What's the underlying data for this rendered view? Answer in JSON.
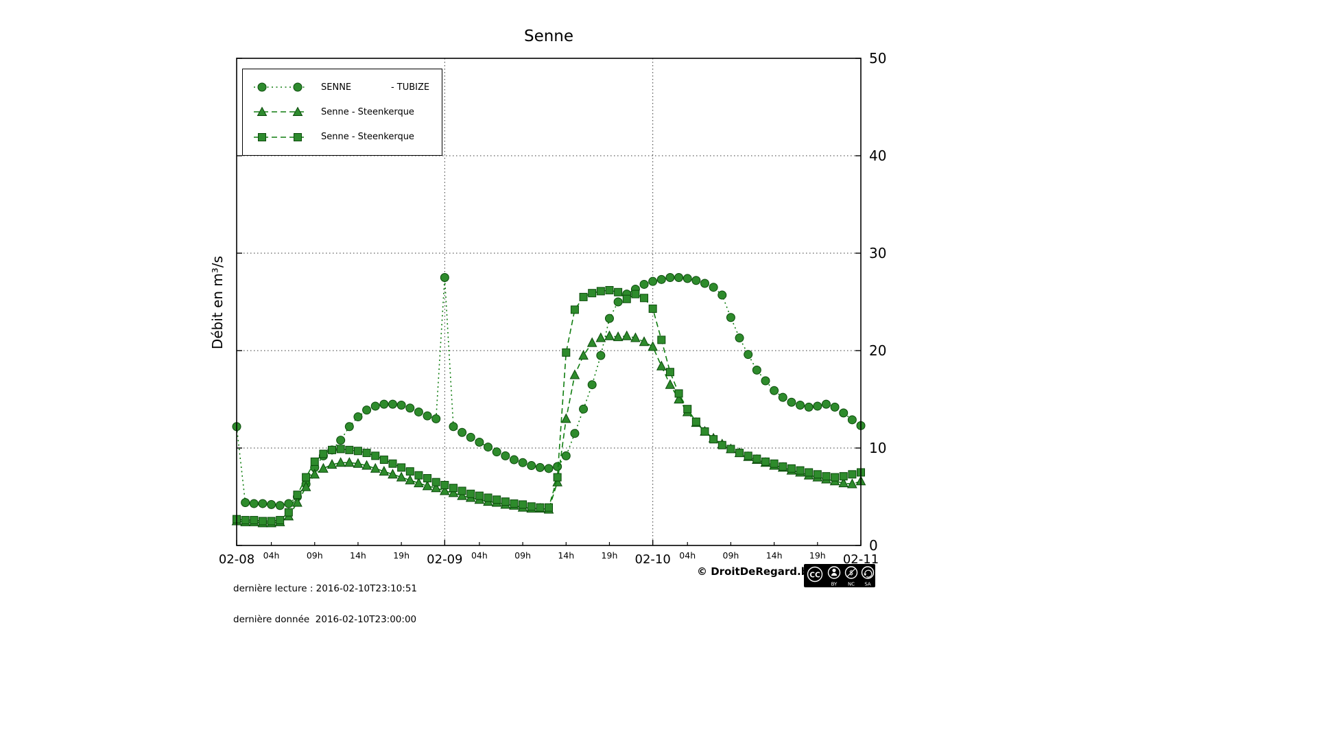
{
  "chart_data": {
    "type": "line",
    "title": "Senne",
    "ylabel": "Débit en m³/s",
    "x_axis": {
      "unit": "hours from 2016-02-08T00:00",
      "step_hours": 1,
      "range": [
        0,
        72
      ],
      "major_ticks": [
        {
          "pos": 0,
          "label": "02-08"
        },
        {
          "pos": 24,
          "label": "02-09"
        },
        {
          "pos": 48,
          "label": "02-10"
        },
        {
          "pos": 72,
          "label": "02-11"
        }
      ],
      "minor_ticks": [
        {
          "pos": 4,
          "label": "04h"
        },
        {
          "pos": 9,
          "label": "09h"
        },
        {
          "pos": 14,
          "label": "14h"
        },
        {
          "pos": 19,
          "label": "19h"
        },
        {
          "pos": 28,
          "label": "04h"
        },
        {
          "pos": 33,
          "label": "09h"
        },
        {
          "pos": 38,
          "label": "14h"
        },
        {
          "pos": 43,
          "label": "19h"
        },
        {
          "pos": 52,
          "label": "04h"
        },
        {
          "pos": 57,
          "label": "09h"
        },
        {
          "pos": 62,
          "label": "14h"
        },
        {
          "pos": 67,
          "label": "19h"
        }
      ]
    },
    "y_axis": {
      "range": [
        0,
        50
      ],
      "ticks": [
        0,
        10,
        20,
        30,
        40,
        50
      ],
      "side": "right"
    },
    "grid": {
      "h_lines": [
        10,
        20,
        30,
        40
      ],
      "v_lines": [
        24,
        48
      ],
      "style": "dotted"
    },
    "series": [
      {
        "name": "SENNE              - TUBIZE",
        "station": "Tubize",
        "marker": "circle",
        "line_style": "dotted",
        "color": "#0e7c0e",
        "values": [
          12.2,
          4.4,
          4.3,
          4.3,
          4.2,
          4.1,
          4.3,
          5.0,
          6.3,
          8.0,
          9.2,
          9.8,
          10.8,
          12.2,
          13.2,
          13.9,
          14.3,
          14.5,
          14.5,
          14.4,
          14.1,
          13.7,
          13.3,
          13.0,
          27.5,
          12.2,
          11.6,
          11.1,
          10.6,
          10.1,
          9.6,
          9.2,
          8.8,
          8.5,
          8.2,
          8.0,
          7.9,
          8.1,
          9.2,
          11.5,
          14.0,
          16.5,
          19.5,
          23.3,
          25.0,
          25.8,
          26.3,
          26.8,
          27.1,
          27.3,
          27.5,
          27.5,
          27.4,
          27.2,
          26.9,
          26.5,
          25.7,
          23.4,
          21.3,
          19.6,
          18.0,
          16.9,
          15.9,
          15.2,
          14.7,
          14.4,
          14.2,
          14.3,
          14.5,
          14.2,
          13.6,
          12.9,
          12.3
        ]
      },
      {
        "name": "Senne - Steenkerque",
        "station": "Steenkerque",
        "marker": "triangle",
        "line_style": "dashed",
        "color": "#0e7c0e",
        "values": [
          2.5,
          2.4,
          2.4,
          2.3,
          2.3,
          2.4,
          3.0,
          4.4,
          6.0,
          7.3,
          7.9,
          8.3,
          8.5,
          8.5,
          8.4,
          8.2,
          7.9,
          7.6,
          7.3,
          7.0,
          6.7,
          6.4,
          6.1,
          5.9,
          5.6,
          5.4,
          5.1,
          4.9,
          4.7,
          4.5,
          4.4,
          4.2,
          4.1,
          3.9,
          3.8,
          3.8,
          3.7,
          6.5,
          13.0,
          17.5,
          19.5,
          20.8,
          21.3,
          21.5,
          21.4,
          21.5,
          21.3,
          20.9,
          20.4,
          18.4,
          16.5,
          15.0,
          13.7,
          12.6,
          11.7,
          11.0,
          10.4,
          9.9,
          9.5,
          9.1,
          8.8,
          8.5,
          8.2,
          8.0,
          7.7,
          7.5,
          7.2,
          7.0,
          6.8,
          6.6,
          6.4,
          6.3,
          6.6
        ]
      },
      {
        "name": "Senne - Steenkerque",
        "station": "Steenkerque",
        "marker": "square",
        "line_style": "dashed",
        "color": "#0e7c0e",
        "values": [
          2.7,
          2.6,
          2.6,
          2.5,
          2.5,
          2.6,
          3.4,
          5.2,
          7.0,
          8.6,
          9.4,
          9.8,
          9.9,
          9.8,
          9.7,
          9.5,
          9.2,
          8.8,
          8.4,
          8.0,
          7.6,
          7.2,
          6.9,
          6.5,
          6.2,
          5.9,
          5.6,
          5.3,
          5.1,
          4.9,
          4.7,
          4.5,
          4.3,
          4.2,
          4.0,
          3.9,
          3.9,
          7.0,
          19.8,
          24.2,
          25.5,
          25.9,
          26.1,
          26.2,
          26.0,
          25.3,
          25.8,
          25.4,
          24.3,
          21.1,
          17.8,
          15.6,
          14.0,
          12.7,
          11.7,
          10.9,
          10.3,
          9.9,
          9.5,
          9.2,
          8.9,
          8.6,
          8.4,
          8.1,
          7.9,
          7.7,
          7.5,
          7.3,
          7.1,
          7.0,
          7.1,
          7.3,
          7.5
        ]
      }
    ]
  },
  "footer": {
    "last_reading": "dernière lecture : 2016-02-10T23:10:51",
    "last_data": "dernière donnée  2016-02-10T23:00:00",
    "copyright": "© DroitDeRegard.be",
    "license": {
      "cc": "CC",
      "by": "BY",
      "nc": "NC",
      "sa": "SA",
      "nc_symbol": "$"
    }
  },
  "colors": {
    "series_green": "#0e7c0e",
    "marker_fill": "#2e8b2c",
    "marker_edge": "#0a4a0a",
    "grid": "#333333",
    "axis": "#000000",
    "background": "#ffffff"
  }
}
